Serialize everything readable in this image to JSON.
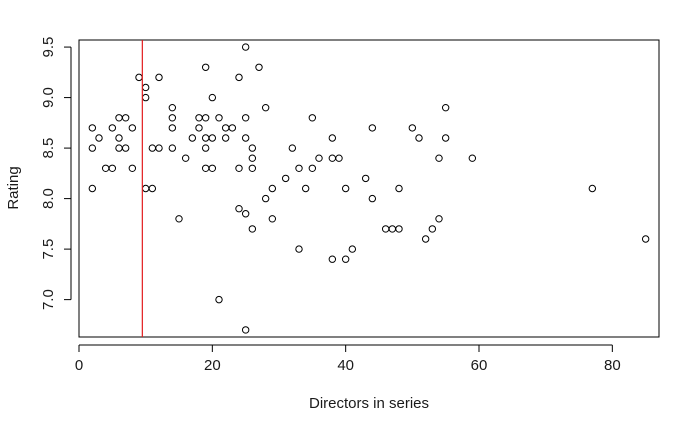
{
  "chart_data": {
    "type": "scatter",
    "title": "",
    "xlabel": "Directors in series",
    "ylabel": "Rating",
    "xlim": [
      0,
      87
    ],
    "ylim": [
      6.63,
      9.57
    ],
    "xticks": [
      0,
      20,
      40,
      60,
      80
    ],
    "yticks": [
      7.0,
      7.5,
      8.0,
      8.5,
      9.0,
      9.5
    ],
    "xtick_labels": [
      "0",
      "20",
      "40",
      "60",
      "80"
    ],
    "ytick_labels": [
      "7.0",
      "7.5",
      "8.0",
      "8.5",
      "9.0",
      "9.5"
    ],
    "grid": false,
    "colors": {
      "points": "#000000",
      "reference_line": "#e31a1c",
      "axes": "#000000"
    },
    "reference_line": {
      "orientation": "vertical",
      "x": 9.5
    },
    "points": [
      {
        "x": 2,
        "y": 8.7
      },
      {
        "x": 2,
        "y": 8.5
      },
      {
        "x": 2,
        "y": 8.1
      },
      {
        "x": 3,
        "y": 8.6
      },
      {
        "x": 4,
        "y": 8.3
      },
      {
        "x": 5,
        "y": 8.3
      },
      {
        "x": 5,
        "y": 8.7
      },
      {
        "x": 6,
        "y": 8.8
      },
      {
        "x": 6,
        "y": 8.6
      },
      {
        "x": 6,
        "y": 8.5
      },
      {
        "x": 7,
        "y": 8.8
      },
      {
        "x": 7,
        "y": 8.5
      },
      {
        "x": 8,
        "y": 8.7
      },
      {
        "x": 8,
        "y": 8.3
      },
      {
        "x": 9,
        "y": 9.2
      },
      {
        "x": 10,
        "y": 9.1
      },
      {
        "x": 10,
        "y": 9.0
      },
      {
        "x": 10,
        "y": 8.1
      },
      {
        "x": 11,
        "y": 8.5
      },
      {
        "x": 11,
        "y": 8.1
      },
      {
        "x": 12,
        "y": 9.2
      },
      {
        "x": 12,
        "y": 8.5
      },
      {
        "x": 14,
        "y": 8.9
      },
      {
        "x": 14,
        "y": 8.8
      },
      {
        "x": 14,
        "y": 8.7
      },
      {
        "x": 14,
        "y": 8.5
      },
      {
        "x": 15,
        "y": 7.8
      },
      {
        "x": 16,
        "y": 8.4
      },
      {
        "x": 17,
        "y": 8.6
      },
      {
        "x": 18,
        "y": 8.8
      },
      {
        "x": 18,
        "y": 8.7
      },
      {
        "x": 19,
        "y": 9.3
      },
      {
        "x": 19,
        "y": 8.8
      },
      {
        "x": 19,
        "y": 8.6
      },
      {
        "x": 19,
        "y": 8.5
      },
      {
        "x": 19,
        "y": 8.3
      },
      {
        "x": 20,
        "y": 9.0
      },
      {
        "x": 20,
        "y": 8.6
      },
      {
        "x": 20,
        "y": 8.3
      },
      {
        "x": 21,
        "y": 8.8
      },
      {
        "x": 21,
        "y": 7.0
      },
      {
        "x": 22,
        "y": 8.7
      },
      {
        "x": 22,
        "y": 8.6
      },
      {
        "x": 23,
        "y": 8.7
      },
      {
        "x": 24,
        "y": 9.2
      },
      {
        "x": 24,
        "y": 8.3
      },
      {
        "x": 24,
        "y": 7.9
      },
      {
        "x": 25,
        "y": 9.5
      },
      {
        "x": 25,
        "y": 8.8
      },
      {
        "x": 25,
        "y": 8.6
      },
      {
        "x": 25,
        "y": 7.85
      },
      {
        "x": 25,
        "y": 6.7
      },
      {
        "x": 26,
        "y": 8.5
      },
      {
        "x": 26,
        "y": 8.4
      },
      {
        "x": 26,
        "y": 8.3
      },
      {
        "x": 26,
        "y": 7.7
      },
      {
        "x": 27,
        "y": 9.3
      },
      {
        "x": 28,
        "y": 8.9
      },
      {
        "x": 28,
        "y": 8.0
      },
      {
        "x": 29,
        "y": 8.1
      },
      {
        "x": 29,
        "y": 7.8
      },
      {
        "x": 31,
        "y": 8.2
      },
      {
        "x": 32,
        "y": 8.5
      },
      {
        "x": 33,
        "y": 8.3
      },
      {
        "x": 33,
        "y": 7.5
      },
      {
        "x": 34,
        "y": 8.1
      },
      {
        "x": 35,
        "y": 8.8
      },
      {
        "x": 35,
        "y": 8.3
      },
      {
        "x": 36,
        "y": 8.4
      },
      {
        "x": 38,
        "y": 8.6
      },
      {
        "x": 38,
        "y": 8.4
      },
      {
        "x": 38,
        "y": 7.4
      },
      {
        "x": 39,
        "y": 8.4
      },
      {
        "x": 40,
        "y": 8.1
      },
      {
        "x": 40,
        "y": 7.4
      },
      {
        "x": 41,
        "y": 7.5
      },
      {
        "x": 43,
        "y": 8.2
      },
      {
        "x": 44,
        "y": 8.7
      },
      {
        "x": 44,
        "y": 8.0
      },
      {
        "x": 46,
        "y": 7.7
      },
      {
        "x": 47,
        "y": 7.7
      },
      {
        "x": 48,
        "y": 8.1
      },
      {
        "x": 48,
        "y": 7.7
      },
      {
        "x": 50,
        "y": 8.7
      },
      {
        "x": 51,
        "y": 8.6
      },
      {
        "x": 52,
        "y": 7.6
      },
      {
        "x": 53,
        "y": 7.7
      },
      {
        "x": 54,
        "y": 8.4
      },
      {
        "x": 54,
        "y": 7.8
      },
      {
        "x": 55,
        "y": 8.9
      },
      {
        "x": 55,
        "y": 8.6
      },
      {
        "x": 59,
        "y": 8.4
      },
      {
        "x": 77,
        "y": 8.1
      },
      {
        "x": 85,
        "y": 7.6
      }
    ]
  }
}
